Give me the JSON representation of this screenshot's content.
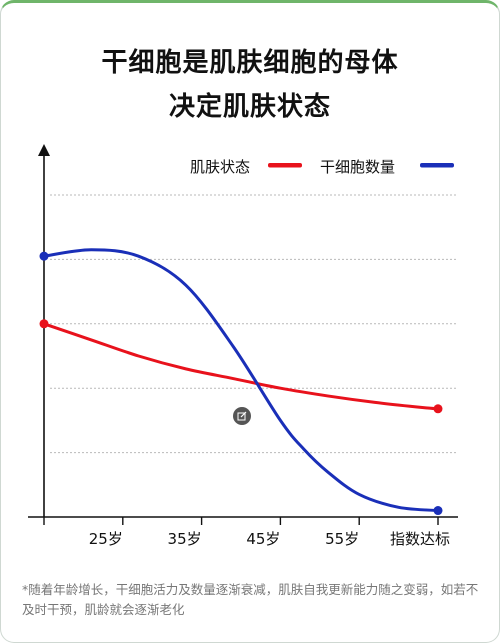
{
  "title": {
    "line1": "干细胞是肌肤细胞的母体",
    "line2": "决定肌肤状态"
  },
  "footnote": "*随着年龄增长，干细胞活力及数量逐渐衰减，肌肤自我更新能力随之变弱，如若不及时干预，肌龄就会逐渐老化",
  "colors": {
    "skin": "#e8121c",
    "stem": "#1a2fb8",
    "accent": "#6fb56a"
  },
  "chart_data": {
    "type": "line",
    "title": "",
    "xlabel": "",
    "ylabel": "",
    "categories": [
      "",
      "25岁",
      "35岁",
      "45岁",
      "55岁",
      "指数达标"
    ],
    "ylim": [
      0,
      5
    ],
    "grid": true,
    "legend_position": "top-right",
    "series": [
      {
        "name": "肌肤状态",
        "color": "#e8121c",
        "x": [
          0,
          0.6,
          1.2,
          1.8,
          2.4,
          3.0,
          3.6,
          4.2,
          4.8,
          5.0
        ],
        "values": [
          3.0,
          2.75,
          2.5,
          2.3,
          2.15,
          2.0,
          1.88,
          1.78,
          1.7,
          1.68
        ]
      },
      {
        "name": "干细胞数量",
        "color": "#1a2fb8",
        "x": [
          0,
          0.6,
          1.2,
          1.8,
          2.4,
          3.0,
          3.3,
          3.6,
          4.0,
          4.5,
          5.0
        ],
        "values": [
          4.05,
          4.15,
          4.05,
          3.6,
          2.65,
          1.5,
          1.05,
          0.7,
          0.35,
          0.15,
          0.1
        ]
      }
    ]
  }
}
